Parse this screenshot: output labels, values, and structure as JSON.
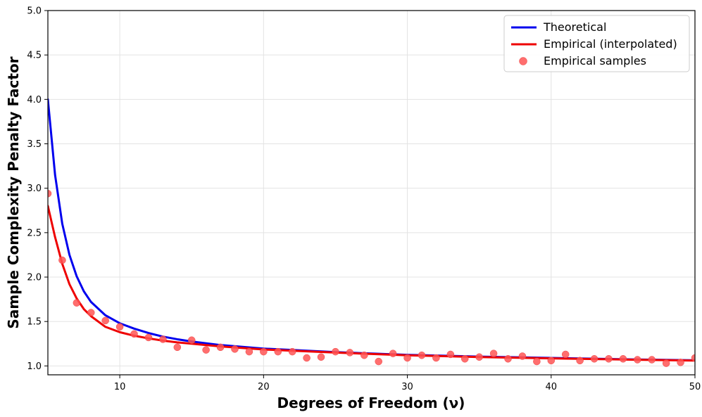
{
  "chart_data": {
    "type": "line",
    "xlabel": "Degrees of Freedom (ν)",
    "ylabel": "Sample Complexity Penalty Factor",
    "xlim": [
      5,
      50
    ],
    "ylim": [
      0.9,
      5.0
    ],
    "xticks": [
      10,
      20,
      30,
      40,
      50
    ],
    "yticks": [
      1.0,
      1.5,
      2.0,
      2.5,
      3.0,
      3.5,
      4.0,
      4.5,
      5.0
    ],
    "grid": true,
    "legend_position": "top-right",
    "series": [
      {
        "name": "Theoretical",
        "kind": "line",
        "color": "#0000ee",
        "x": [
          5,
          5.5,
          6,
          6.5,
          7,
          7.5,
          8,
          9,
          10,
          11,
          12,
          13,
          14,
          15,
          17,
          20,
          25,
          30,
          35,
          40,
          45,
          50
        ],
        "y": [
          4.0,
          3.15,
          2.6,
          2.25,
          2.01,
          1.84,
          1.72,
          1.57,
          1.48,
          1.42,
          1.37,
          1.33,
          1.3,
          1.275,
          1.235,
          1.195,
          1.155,
          1.125,
          1.105,
          1.09,
          1.075,
          1.063
        ]
      },
      {
        "name": "Empirical (interpolated)",
        "kind": "line",
        "color": "#ee0000",
        "x": [
          5,
          5.5,
          6,
          6.5,
          7,
          7.5,
          8,
          9,
          10,
          11,
          12,
          13,
          14,
          15,
          17,
          20,
          25,
          30,
          35,
          40,
          45,
          50
        ],
        "y": [
          2.8,
          2.45,
          2.15,
          1.92,
          1.76,
          1.64,
          1.56,
          1.44,
          1.38,
          1.34,
          1.31,
          1.285,
          1.265,
          1.25,
          1.22,
          1.185,
          1.15,
          1.12,
          1.1,
          1.085,
          1.072,
          1.06
        ]
      },
      {
        "name": "Empirical samples",
        "kind": "scatter",
        "color": "#ff5555",
        "x": [
          5,
          6,
          7,
          8,
          9,
          10,
          11,
          12,
          13,
          14,
          15,
          16,
          17,
          18,
          19,
          20,
          21,
          22,
          23,
          24,
          25,
          26,
          27,
          28,
          29,
          30,
          31,
          32,
          33,
          34,
          35,
          36,
          37,
          38,
          39,
          40,
          41,
          42,
          43,
          44,
          45,
          46,
          47,
          48,
          49,
          50
        ],
        "y": [
          2.94,
          2.19,
          1.71,
          1.6,
          1.51,
          1.44,
          1.36,
          1.32,
          1.3,
          1.21,
          1.29,
          1.18,
          1.21,
          1.19,
          1.16,
          1.16,
          1.16,
          1.16,
          1.09,
          1.1,
          1.16,
          1.15,
          1.12,
          1.05,
          1.14,
          1.09,
          1.12,
          1.09,
          1.13,
          1.08,
          1.1,
          1.14,
          1.08,
          1.11,
          1.05,
          1.06,
          1.13,
          1.06,
          1.08,
          1.08,
          1.08,
          1.07,
          1.07,
          1.03,
          1.04,
          1.09
        ]
      }
    ]
  }
}
